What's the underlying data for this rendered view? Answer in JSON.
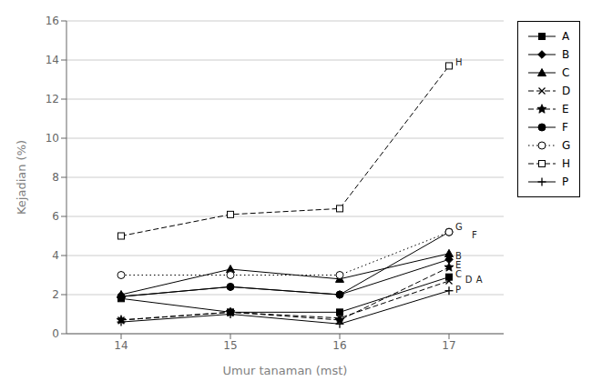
{
  "chart_data": {
    "type": "line",
    "x": [
      14,
      15,
      16,
      17
    ],
    "series": [
      {
        "name": "A",
        "values": [
          1.8,
          1.1,
          1.1,
          2.9
        ],
        "color": "black",
        "marker": "square",
        "line_style": "solid"
      },
      {
        "name": "B",
        "values": [
          1.9,
          2.4,
          2.0,
          3.8
        ],
        "color": "black",
        "marker": "diamond",
        "line_style": "solid"
      },
      {
        "name": "C",
        "values": [
          2.0,
          3.3,
          2.8,
          4.1
        ],
        "color": "black",
        "marker": "triangle",
        "line_style": "solid"
      },
      {
        "name": "D",
        "values": [
          0.7,
          1.1,
          0.8,
          2.7
        ],
        "color": "black",
        "marker": "x",
        "line_style": "dashed"
      },
      {
        "name": "E",
        "values": [
          0.7,
          1.1,
          0.7,
          3.4
        ],
        "color": "black",
        "marker": "star",
        "line_style": "dashed"
      },
      {
        "name": "F",
        "values": [
          1.9,
          2.4,
          2.0,
          5.2
        ],
        "color": "black",
        "marker": "circle",
        "line_style": "solid"
      },
      {
        "name": "G",
        "values": [
          3.0,
          3.0,
          3.0,
          5.2
        ],
        "color": "black",
        "marker": "circle-open",
        "line_style": "dotted"
      },
      {
        "name": "H",
        "values": [
          5.0,
          6.1,
          6.4,
          13.7
        ],
        "color": "black",
        "marker": "square-open",
        "line_style": "dashed"
      },
      {
        "name": "P",
        "values": [
          0.6,
          1.0,
          0.5,
          2.2
        ],
        "color": "black",
        "marker": "plus",
        "line_style": "solid"
      }
    ],
    "xlabel": "Umur tanaman (mst)",
    "ylabel": "Kejadian (%)",
    "xlim": [
      13.5,
      17.5
    ],
    "xticks": [
      14,
      15,
      16,
      17
    ],
    "ylim": [
      0,
      16
    ],
    "yticks": [
      0,
      2,
      4,
      6,
      8,
      10,
      12,
      14,
      16
    ],
    "grid": "y",
    "legend": "right",
    "annotations": [
      {
        "text": "H",
        "x": 17.05,
        "y": 13.9
      },
      {
        "text": "G",
        "x": 17.05,
        "y": 5.45
      },
      {
        "text": "F",
        "x": 17.2,
        "y": 5.05
      },
      {
        "text": "B",
        "x": 17.05,
        "y": 4.0
      },
      {
        "text": "E",
        "x": 17.05,
        "y": 3.5
      },
      {
        "text": "C",
        "x": 17.05,
        "y": 3.05
      },
      {
        "text": "D",
        "x": 17.14,
        "y": 2.78
      },
      {
        "text": "A",
        "x": 17.24,
        "y": 2.78
      },
      {
        "text": "P",
        "x": 17.05,
        "y": 2.28
      }
    ]
  }
}
